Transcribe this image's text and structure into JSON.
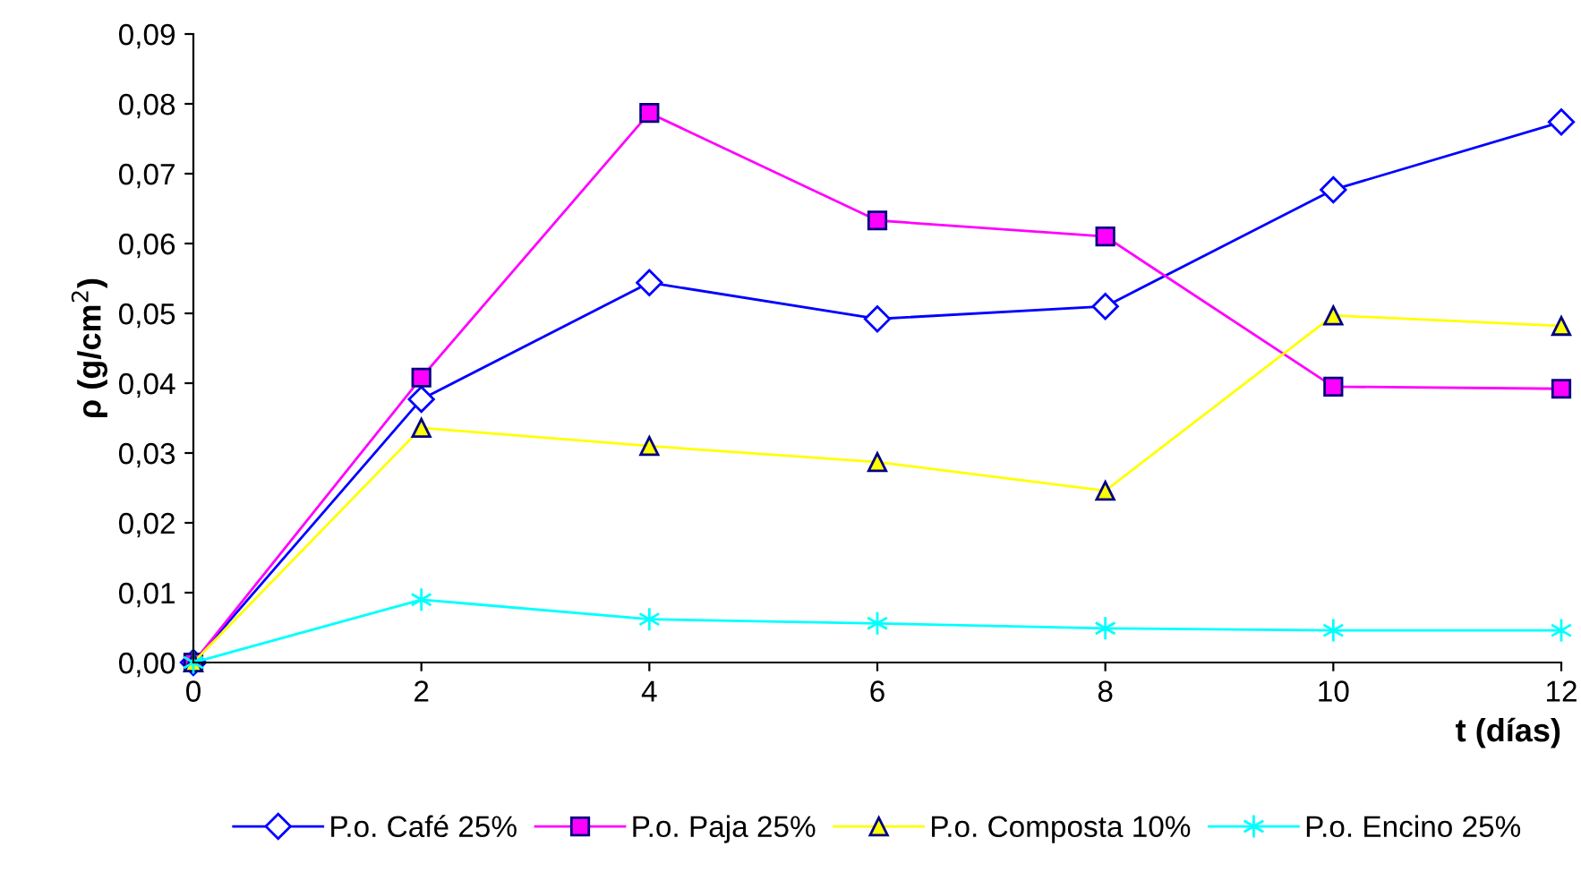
{
  "chart_data": {
    "type": "line",
    "xlabel": "t (días)",
    "ylabel": "ρ (g/cm$^{2}$)",
    "x": [
      0,
      2,
      4,
      6,
      8,
      10,
      12
    ],
    "xlim": [
      0,
      12
    ],
    "xticks": [
      0,
      2,
      4,
      6,
      8,
      10,
      12
    ],
    "ylim": [
      0,
      0.09
    ],
    "yticks": [
      {
        "value": 0,
        "label": "0,00"
      },
      {
        "value": 0.01,
        "label": "0,01"
      },
      {
        "value": 0.02,
        "label": "0,02"
      },
      {
        "value": 0.03,
        "label": "0,03"
      },
      {
        "value": 0.04,
        "label": "0,04"
      },
      {
        "value": 0.05,
        "label": "0,05"
      },
      {
        "value": 0.06,
        "label": "0,06"
      },
      {
        "value": 0.07,
        "label": "0,07"
      },
      {
        "value": 0.08,
        "label": "0,08"
      },
      {
        "value": 0.09,
        "label": "0,09"
      }
    ],
    "grid": false,
    "legend": "bottom",
    "line_style": "solid",
    "series": [
      {
        "name": "P.o. Café 25%",
        "color": "#0000ff",
        "marker": "diamond",
        "values": [
          0,
          0.0377,
          0.0544,
          0.0492,
          0.051,
          0.0677,
          0.0774
        ]
      },
      {
        "name": "P.o. Paja 25%",
        "color": "#ff00ff",
        "marker": "square",
        "values": [
          0,
          0.0408,
          0.0787,
          0.0633,
          0.061,
          0.0395,
          0.0392
        ]
      },
      {
        "name": "P.o. Composta 10%",
        "color": "#ffff00",
        "marker": "triangle",
        "values": [
          0,
          0.0336,
          0.031,
          0.0287,
          0.0246,
          0.0497,
          0.0482
        ]
      },
      {
        "name": "P.o. Encino 25%",
        "color": "#00ffff",
        "marker": "cross",
        "values": [
          0,
          0.009,
          0.0062,
          0.0056,
          0.0049,
          0.0046,
          0.0046
        ]
      }
    ]
  }
}
